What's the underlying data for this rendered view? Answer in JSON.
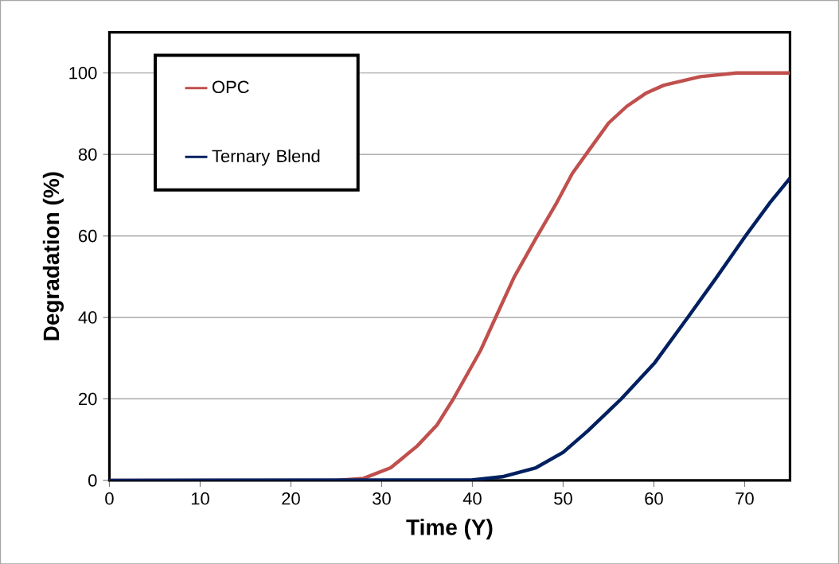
{
  "chart_data": {
    "type": "line",
    "xlabel": "Time (Y)",
    "ylabel": "Degradation (%)",
    "xlim": [
      0,
      75
    ],
    "ylim": [
      0,
      110
    ],
    "xticks": [
      0,
      10,
      20,
      30,
      40,
      50,
      60,
      70
    ],
    "yticks": [
      0,
      20,
      40,
      60,
      80,
      100
    ],
    "grid": "y",
    "legend": "top left",
    "marker": "none",
    "line_style": "solid",
    "series": [
      {
        "name": "OPC",
        "color": "#c0504d",
        "x": [
          0,
          25,
          28,
          31,
          33.9,
          36.1,
          37.9,
          40.9,
          42.6,
          44.6,
          47.1,
          49.2,
          51,
          52.7,
          55,
          57,
          59.1,
          61.1,
          65.1,
          69.1,
          75
        ],
        "values": [
          0,
          0,
          0.5,
          3.1,
          8.4,
          13.6,
          20,
          31.9,
          40.2,
          49.9,
          59.8,
          67.8,
          75.3,
          80.6,
          87.7,
          91.8,
          95,
          97,
          99.1,
          100,
          100
        ]
      },
      {
        "name": "Ternary Blend",
        "color": "#002060",
        "x": [
          0,
          39.9,
          43.3,
          47,
          50,
          52.7,
          56.4,
          60.1,
          63.8,
          66.8,
          70.1,
          72.8,
          75
        ],
        "values": [
          0,
          0.1,
          0.9,
          3.1,
          6.9,
          12.1,
          20,
          28.9,
          40.2,
          49.5,
          60,
          68.2,
          74.2
        ]
      }
    ]
  }
}
